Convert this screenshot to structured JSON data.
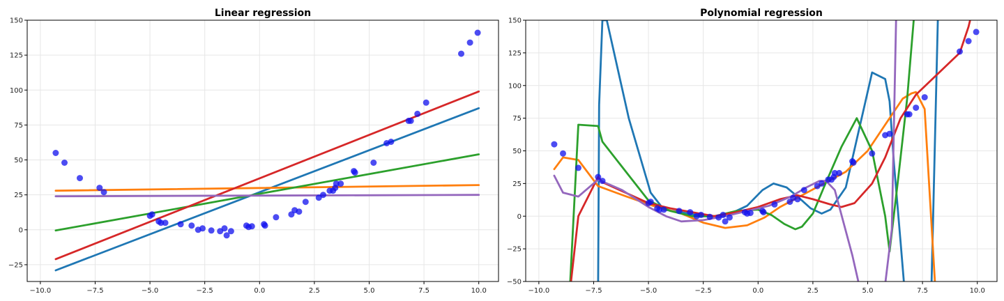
{
  "chart_data": [
    {
      "type": "scatter",
      "title": "Linear regression",
      "xlim": [
        -10.6,
        10.9
      ],
      "ylim": [
        -37,
        150
      ],
      "xticks": [
        -10.0,
        -7.5,
        -5.0,
        -2.5,
        0.0,
        2.5,
        5.0,
        7.5,
        10.0
      ],
      "yticks": [
        -25,
        0,
        25,
        50,
        75,
        100,
        125,
        150
      ],
      "xtick_labels": [
        "−10.0",
        "−7.5",
        "−5.0",
        "−2.5",
        "0.0",
        "2.5",
        "5.0",
        "7.5",
        "10.0"
      ],
      "ytick_labels": [
        "−25",
        "0",
        "25",
        "50",
        "75",
        "100",
        "125",
        "150"
      ],
      "grid": true,
      "points": [
        [
          -9.3,
          55
        ],
        [
          -8.9,
          48
        ],
        [
          -8.2,
          37
        ],
        [
          -7.3,
          30
        ],
        [
          -7.1,
          27
        ],
        [
          -5.0,
          10
        ],
        [
          -4.9,
          11
        ],
        [
          -4.6,
          6
        ],
        [
          -4.5,
          5
        ],
        [
          -4.3,
          5
        ],
        [
          -3.6,
          4
        ],
        [
          -3.1,
          3
        ],
        [
          -2.8,
          0
        ],
        [
          -2.6,
          1
        ],
        [
          -2.2,
          -0.5
        ],
        [
          -1.8,
          -1
        ],
        [
          -1.6,
          1
        ],
        [
          -1.5,
          -4
        ],
        [
          -1.3,
          -1
        ],
        [
          -0.6,
          3
        ],
        [
          -0.5,
          2
        ],
        [
          -0.35,
          2.5
        ],
        [
          0.2,
          4
        ],
        [
          0.25,
          3
        ],
        [
          0.75,
          9
        ],
        [
          1.45,
          11
        ],
        [
          1.6,
          14
        ],
        [
          1.8,
          13
        ],
        [
          2.1,
          20
        ],
        [
          2.7,
          23
        ],
        [
          2.9,
          25
        ],
        [
          3.2,
          28
        ],
        [
          3.35,
          28
        ],
        [
          3.45,
          30
        ],
        [
          3.5,
          33
        ],
        [
          3.7,
          33
        ],
        [
          4.3,
          42
        ],
        [
          4.35,
          41
        ],
        [
          5.2,
          48
        ],
        [
          5.8,
          62
        ],
        [
          6.0,
          63
        ],
        [
          6.8,
          78
        ],
        [
          6.9,
          78
        ],
        [
          7.2,
          83
        ],
        [
          7.6,
          91
        ],
        [
          9.2,
          126
        ],
        [
          9.6,
          134
        ],
        [
          9.95,
          141
        ]
      ],
      "series": [
        {
          "color": "#1f77b4",
          "points": [
            [
              -9.3,
              -29
            ],
            [
              10,
              87
            ]
          ]
        },
        {
          "color": "#ff7f0e",
          "points": [
            [
              -9.3,
              28
            ],
            [
              10,
              32
            ]
          ]
        },
        {
          "color": "#2ca02c",
          "points": [
            [
              -9.3,
              -0.5
            ],
            [
              10,
              54
            ]
          ]
        },
        {
          "color": "#d62728",
          "points": [
            [
              -9.3,
              -21
            ],
            [
              10,
              99
            ]
          ]
        },
        {
          "color": "#9467bd",
          "points": [
            [
              -9.3,
              24
            ],
            [
              10,
              25
            ]
          ]
        }
      ]
    },
    {
      "type": "scatter",
      "title": "Polynomial regression",
      "xlim": [
        -10.6,
        10.9
      ],
      "ylim": [
        -50,
        150
      ],
      "xticks": [
        -10.0,
        -7.5,
        -5.0,
        -2.5,
        0.0,
        2.5,
        5.0,
        7.5,
        10.0
      ],
      "yticks": [
        -50,
        -25,
        0,
        25,
        50,
        75,
        100,
        125,
        150
      ],
      "xtick_labels": [
        "−10.0",
        "−7.5",
        "−5.0",
        "−2.5",
        "0.0",
        "2.5",
        "5.0",
        "7.5",
        "10.0"
      ],
      "ytick_labels": [
        "−50",
        "−25",
        "0",
        "25",
        "50",
        "75",
        "100",
        "125",
        "150"
      ],
      "grid": true,
      "points": [
        [
          -9.3,
          55
        ],
        [
          -8.9,
          48
        ],
        [
          -8.2,
          37
        ],
        [
          -7.3,
          30
        ],
        [
          -7.1,
          27
        ],
        [
          -5.0,
          10
        ],
        [
          -4.9,
          11
        ],
        [
          -4.6,
          6
        ],
        [
          -4.5,
          5
        ],
        [
          -4.3,
          5
        ],
        [
          -3.6,
          4
        ],
        [
          -3.1,
          3
        ],
        [
          -2.8,
          0
        ],
        [
          -2.6,
          1
        ],
        [
          -2.2,
          -0.5
        ],
        [
          -1.8,
          -1
        ],
        [
          -1.6,
          1
        ],
        [
          -1.5,
          -4
        ],
        [
          -1.3,
          -1
        ],
        [
          -0.6,
          3
        ],
        [
          -0.5,
          2
        ],
        [
          -0.35,
          2.5
        ],
        [
          0.2,
          4
        ],
        [
          0.25,
          3
        ],
        [
          0.75,
          9
        ],
        [
          1.45,
          11
        ],
        [
          1.6,
          14
        ],
        [
          1.8,
          13
        ],
        [
          2.1,
          20
        ],
        [
          2.7,
          23
        ],
        [
          2.9,
          25
        ],
        [
          3.2,
          28
        ],
        [
          3.35,
          28
        ],
        [
          3.45,
          30
        ],
        [
          3.5,
          33
        ],
        [
          3.7,
          33
        ],
        [
          4.3,
          42
        ],
        [
          4.35,
          41
        ],
        [
          5.2,
          48
        ],
        [
          5.8,
          62
        ],
        [
          6.0,
          63
        ],
        [
          6.8,
          78
        ],
        [
          6.9,
          78
        ],
        [
          7.2,
          83
        ],
        [
          7.6,
          91
        ],
        [
          9.2,
          126
        ],
        [
          9.6,
          134
        ],
        [
          9.95,
          141
        ]
      ],
      "series": [
        {
          "color": "#1f77b4",
          "points": [
            [
              -7.3,
              -60
            ],
            [
              -7.25,
              85
            ],
            [
              -7.1,
              150
            ],
            [
              -6.9,
              150
            ],
            [
              -5.9,
              75
            ],
            [
              -4.9,
              18
            ],
            [
              -4.3,
              5
            ],
            [
              -3.5,
              3
            ],
            [
              -2.5,
              0
            ],
            [
              -1.5,
              0
            ],
            [
              -0.5,
              8
            ],
            [
              0.2,
              20
            ],
            [
              0.7,
              25
            ],
            [
              1.3,
              22
            ],
            [
              1.8,
              15
            ],
            [
              2.4,
              6
            ],
            [
              2.9,
              2
            ],
            [
              3.3,
              5
            ],
            [
              4.0,
              22
            ],
            [
              5.2,
              110
            ],
            [
              5.8,
              105
            ],
            [
              6.0,
              88
            ],
            [
              6.2,
              40
            ],
            [
              6.5,
              -20
            ],
            [
              6.7,
              -60
            ],
            [
              7.9,
              -60
            ],
            [
              8.2,
              150
            ]
          ]
        },
        {
          "color": "#ff7f0e",
          "points": [
            [
              -9.3,
              36
            ],
            [
              -8.9,
              45
            ],
            [
              -8.2,
              43
            ],
            [
              -7.3,
              23
            ],
            [
              -6,
              15
            ],
            [
              -4.8,
              8
            ],
            [
              -3.5,
              2
            ],
            [
              -2.5,
              -5
            ],
            [
              -1.5,
              -9
            ],
            [
              -0.5,
              -7
            ],
            [
              0.3,
              -1
            ],
            [
              1.0,
              7
            ],
            [
              2.0,
              16
            ],
            [
              3.0,
              25
            ],
            [
              4.0,
              34
            ],
            [
              5.0,
              50
            ],
            [
              6.0,
              75
            ],
            [
              6.6,
              90
            ],
            [
              7.0,
              94
            ],
            [
              7.2,
              95
            ],
            [
              7.6,
              82
            ],
            [
              8.1,
              -60
            ]
          ]
        },
        {
          "color": "#2ca02c",
          "points": [
            [
              -8.6,
              -60
            ],
            [
              -8.2,
              70
            ],
            [
              -7.3,
              69
            ],
            [
              -7.1,
              57
            ],
            [
              -5.0,
              12
            ],
            [
              -4.0,
              4
            ],
            [
              -3.0,
              0
            ],
            [
              -2.0,
              0
            ],
            [
              -1.0,
              4
            ],
            [
              0.0,
              5
            ],
            [
              0.6,
              1
            ],
            [
              1.2,
              -6
            ],
            [
              1.7,
              -10
            ],
            [
              2.0,
              -8
            ],
            [
              2.5,
              2
            ],
            [
              3.0,
              22
            ],
            [
              3.8,
              53
            ],
            [
              4.5,
              75
            ],
            [
              5.2,
              50
            ],
            [
              5.8,
              0
            ],
            [
              6.0,
              -27
            ],
            [
              6.4,
              30
            ],
            [
              6.8,
              90
            ],
            [
              7.1,
              150
            ]
          ]
        },
        {
          "color": "#d62728",
          "points": [
            [
              -8.6,
              -60
            ],
            [
              -8.2,
              0
            ],
            [
              -7.3,
              30
            ],
            [
              -7.1,
              26
            ],
            [
              -5.0,
              10
            ],
            [
              -4.0,
              6
            ],
            [
              -3.0,
              3
            ],
            [
              -2.0,
              0
            ],
            [
              -1.0,
              3
            ],
            [
              0.0,
              7
            ],
            [
              1.0,
              13
            ],
            [
              1.8,
              16
            ],
            [
              2.5,
              13
            ],
            [
              3.3,
              9
            ],
            [
              3.8,
              7
            ],
            [
              4.4,
              10
            ],
            [
              5.2,
              25
            ],
            [
              5.8,
              45
            ],
            [
              6.5,
              75
            ],
            [
              7.2,
              93
            ],
            [
              9.2,
              125
            ],
            [
              9.6,
              145
            ],
            [
              9.7,
              152
            ]
          ]
        },
        {
          "color": "#9467bd",
          "points": [
            [
              -9.3,
              31
            ],
            [
              -8.9,
              18
            ],
            [
              -8.2,
              15
            ],
            [
              -7.3,
              28
            ],
            [
              -6.2,
              20
            ],
            [
              -5.0,
              7
            ],
            [
              -4.2,
              0
            ],
            [
              -3.5,
              -4
            ],
            [
              -2.5,
              -3
            ],
            [
              -1.5,
              0
            ],
            [
              -0.5,
              4
            ],
            [
              0.5,
              8
            ],
            [
              1.5,
              15
            ],
            [
              2.2,
              22
            ],
            [
              2.8,
              27
            ],
            [
              3.1,
              27
            ],
            [
              3.5,
              20
            ],
            [
              4.3,
              -30
            ],
            [
              4.6,
              -52
            ],
            [
              5.8,
              -52
            ],
            [
              6.1,
              -10
            ],
            [
              6.3,
              155
            ]
          ]
        }
      ]
    }
  ]
}
